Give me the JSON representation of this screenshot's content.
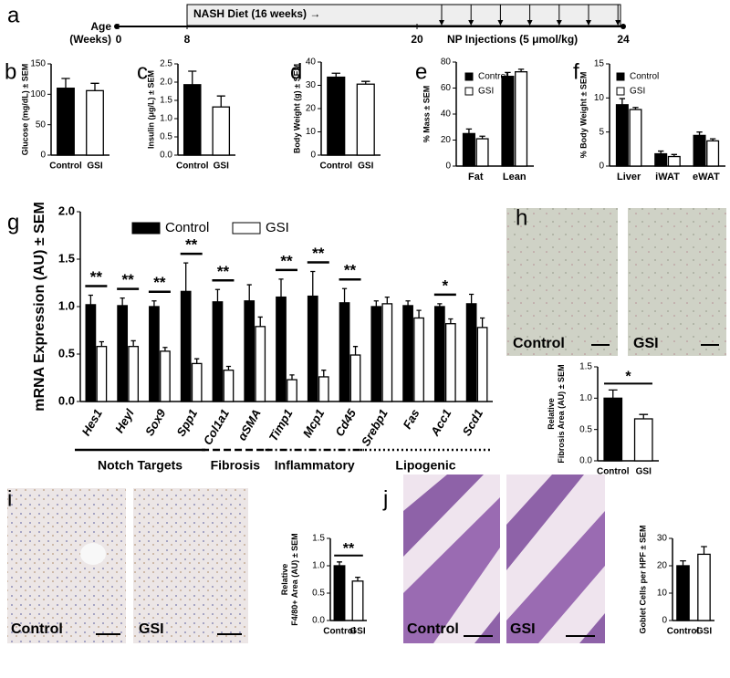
{
  "panel_labels": [
    "a",
    "b",
    "c",
    "d",
    "e",
    "f",
    "g",
    "h",
    "i",
    "j"
  ],
  "timeline": {
    "age_label": [
      "Age",
      "(Weeks)"
    ],
    "ticks": [
      0,
      8,
      20,
      24
    ],
    "diet_label": "NASH Diet (16 weeks) →",
    "injection_label": "NP Injections (5 μmol/kg)"
  },
  "images": {
    "h": [
      "Control",
      "GSI"
    ],
    "i": [
      "Control",
      "GSI"
    ],
    "j": [
      "Control",
      "GSI"
    ]
  },
  "chart_data": [
    {
      "type": "bar",
      "y_label": [
        "Glucose (mg/dL) ± SEM"
      ],
      "categories": [
        "Control",
        "GSI"
      ],
      "values": [
        110,
        106
      ],
      "errors": [
        16,
        12
      ],
      "colors": [
        "#000000",
        "#ffffff"
      ],
      "ylim": [
        0,
        150
      ],
      "yticks": [
        0,
        50,
        100,
        150
      ]
    },
    {
      "type": "bar",
      "y_label": [
        "Insulin (μg/L) ± SEM"
      ],
      "categories": [
        "Control",
        "GSI"
      ],
      "values": [
        1.93,
        1.32
      ],
      "errors": [
        0.37,
        0.3
      ],
      "colors": [
        "#000000",
        "#ffffff"
      ],
      "ylim": [
        0,
        2.5
      ],
      "yticks": [
        {
          "value": 0,
          "label": "0.0"
        },
        0.5,
        {
          "value": 1,
          "label": "1.0"
        },
        1.5,
        {
          "value": 2,
          "label": "2.0"
        },
        2.5
      ]
    },
    {
      "type": "bar",
      "y_label": [
        "Body Weight (g) ± SEM"
      ],
      "categories": [
        "Control",
        "GSI"
      ],
      "values": [
        33.5,
        30.5
      ],
      "errors": [
        1.7,
        1.2
      ],
      "colors": [
        "#000000",
        "#ffffff"
      ],
      "ylim": [
        0,
        40
      ],
      "yticks": [
        0,
        10,
        20,
        30,
        40
      ]
    },
    {
      "type": "grouped_bar",
      "y_label": [
        "% Mass ± SEM"
      ],
      "categories": [
        "Fat",
        "Lean"
      ],
      "legend": "top-left",
      "series": [
        {
          "name": "Control",
          "color": "#000000",
          "values": [
            25,
            69
          ],
          "errors": [
            3.5,
            3
          ]
        },
        {
          "name": "GSI",
          "color": "#ffffff",
          "values": [
            21,
            72.5
          ],
          "errors": [
            2,
            2
          ]
        }
      ],
      "ylim": [
        0,
        80
      ],
      "yticks": [
        0,
        20,
        40,
        60,
        80
      ]
    },
    {
      "type": "grouped_bar",
      "y_label": [
        "% Body Weight ± SEM"
      ],
      "categories": [
        "Liver",
        "iWAT",
        "eWAT"
      ],
      "legend": "top-left",
      "series": [
        {
          "name": "Control",
          "color": "#000000",
          "values": [
            9,
            1.8,
            4.5
          ],
          "errors": [
            0.9,
            0.4,
            0.5
          ]
        },
        {
          "name": "GSI",
          "color": "#ffffff",
          "values": [
            8.3,
            1.4,
            3.7
          ],
          "errors": [
            0.3,
            0.3,
            0.3
          ]
        }
      ],
      "ylim": [
        0,
        15
      ],
      "yticks": [
        0,
        5,
        10,
        15
      ]
    },
    {
      "type": "grouped_bar",
      "y_label": [
        "mRNA Expression (AU) ± SEM"
      ],
      "legend": "top",
      "categories": [
        "Hes1",
        "Heyl",
        "Sox9",
        "Spp1",
        "Col1a1",
        "αSMA",
        "Timp1",
        "Mcp1",
        "Cd45",
        "Srebp1",
        "Fas",
        "Acc1",
        "Scd1"
      ],
      "series": [
        {
          "name": "Control",
          "color": "#000000",
          "values": [
            1.02,
            1.01,
            1.0,
            1.16,
            1.05,
            1.06,
            1.1,
            1.11,
            1.04,
            1.0,
            1.01,
            1.0,
            1.03
          ],
          "errors": [
            0.1,
            0.08,
            0.06,
            0.3,
            0.13,
            0.17,
            0.19,
            0.26,
            0.15,
            0.06,
            0.05,
            0.03,
            0.1
          ]
        },
        {
          "name": "GSI",
          "color": "#ffffff",
          "values": [
            0.58,
            0.58,
            0.53,
            0.4,
            0.33,
            0.79,
            0.23,
            0.26,
            0.49,
            1.03,
            0.88,
            0.82,
            0.78
          ],
          "errors": [
            0.05,
            0.06,
            0.04,
            0.05,
            0.04,
            0.1,
            0.05,
            0.07,
            0.09,
            0.07,
            0.08,
            0.05,
            0.1
          ]
        }
      ],
      "significance": [
        "**",
        "**",
        "**",
        "**",
        "**",
        null,
        "**",
        "**",
        "**",
        null,
        null,
        "*",
        null
      ],
      "groups": [
        {
          "label": "Notch Targets",
          "from": "Hes1",
          "to": "Spp1",
          "line_style": "solid"
        },
        {
          "label": "Fibrosis",
          "from": "Col1a1",
          "to": "αSMA",
          "line_style": "dash"
        },
        {
          "label": "Inflammatory",
          "from": "Timp1",
          "to": "Cd45",
          "line_style": "dash-dot"
        },
        {
          "label": "Lipogenic",
          "from": "Srebp1",
          "to": "Scd1",
          "line_style": "dotted"
        }
      ],
      "ylim": [
        0,
        2
      ],
      "yticks": [
        {
          "value": 0,
          "label": "0.0"
        },
        0.5,
        {
          "value": 1,
          "label": "1.0"
        },
        1.5,
        {
          "value": 2,
          "label": "2.0"
        }
      ]
    },
    {
      "type": "bar",
      "y_label": [
        "Relative",
        "Fibrosis Area (AU) ± SEM"
      ],
      "categories": [
        "Control",
        "GSI"
      ],
      "values": [
        1.0,
        0.67
      ],
      "errors": [
        0.13,
        0.07
      ],
      "colors": [
        "#000000",
        "#ffffff"
      ],
      "significance": "*",
      "ylim": [
        0,
        1.5
      ],
      "yticks": [
        {
          "value": 0,
          "label": "0.0"
        },
        0.5,
        {
          "value": 1,
          "label": "1.0"
        },
        1.5
      ]
    },
    {
      "type": "bar",
      "y_label": [
        "Relative",
        "F4/80+ Area (AU) ± SEM"
      ],
      "categories": [
        "Control",
        "GSI"
      ],
      "values": [
        1.0,
        0.72
      ],
      "errors": [
        0.07,
        0.07
      ],
      "colors": [
        "#000000",
        "#ffffff"
      ],
      "significance": "**",
      "ylim": [
        0,
        1.5
      ],
      "yticks": [
        {
          "value": 0,
          "label": "0.0"
        },
        0.5,
        {
          "value": 1,
          "label": "1.0"
        },
        1.5
      ]
    },
    {
      "type": "bar",
      "y_label": [
        "Goblet Cells per HPF ± SEM"
      ],
      "categories": [
        "Control",
        "GSI"
      ],
      "values": [
        20,
        24.2
      ],
      "errors": [
        1.8,
        2.8
      ],
      "colors": [
        "#000000",
        "#ffffff"
      ],
      "ylim": [
        0,
        30
      ],
      "yticks": [
        0,
        10,
        20,
        30
      ]
    }
  ]
}
